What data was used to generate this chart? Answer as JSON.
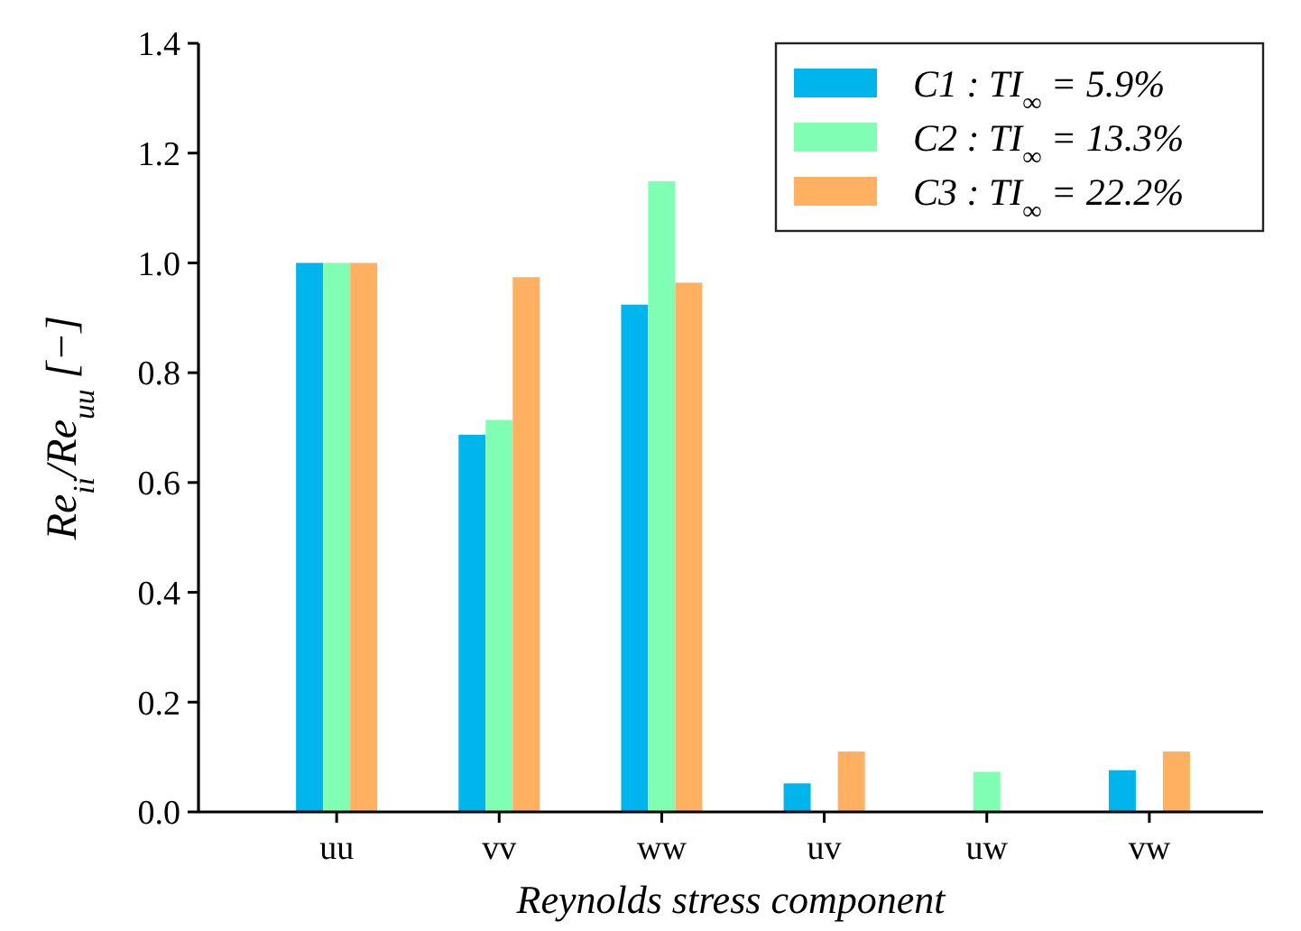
{
  "chart_data": {
    "type": "bar",
    "xlabel": "Reynolds stress component",
    "ylabel": "Re$_{ii}$/Re$_{uu}$ [−]",
    "categories": [
      "uu",
      "vv",
      "ww",
      "uv",
      "uw",
      "vw"
    ],
    "series": [
      {
        "name": "C1 : TI$_{∞}$ = 5.9%",
        "color": "#00b5ec",
        "values": [
          1.0,
          0.687,
          0.924,
          0.052,
          null,
          0.076
        ]
      },
      {
        "name": "C2 : TI$_{∞}$ = 13.3%",
        "color": "#80ffb4",
        "values": [
          1.0,
          0.714,
          1.149,
          null,
          0.073,
          null
        ]
      },
      {
        "name": "C3 : TI$_{∞}$ = 22.2%",
        "color": "#ffb060",
        "values": [
          1.0,
          0.974,
          0.964,
          0.11,
          null,
          0.11
        ]
      }
    ],
    "ylim": [
      0,
      1.4
    ],
    "yticks": [
      {
        "value": 0,
        "label": "0.0"
      },
      {
        "value": 0.2,
        "label": "0.2"
      },
      {
        "value": 0.4,
        "label": "0.4"
      },
      {
        "value": 0.6,
        "label": "0.6"
      },
      {
        "value": 0.8,
        "label": "0.8"
      },
      {
        "value": 1.0,
        "label": "1.0"
      },
      {
        "value": 1.2,
        "label": "1.2"
      },
      {
        "value": 1.4,
        "label": "1.4"
      }
    ],
    "grid": false,
    "legend": "top right"
  }
}
